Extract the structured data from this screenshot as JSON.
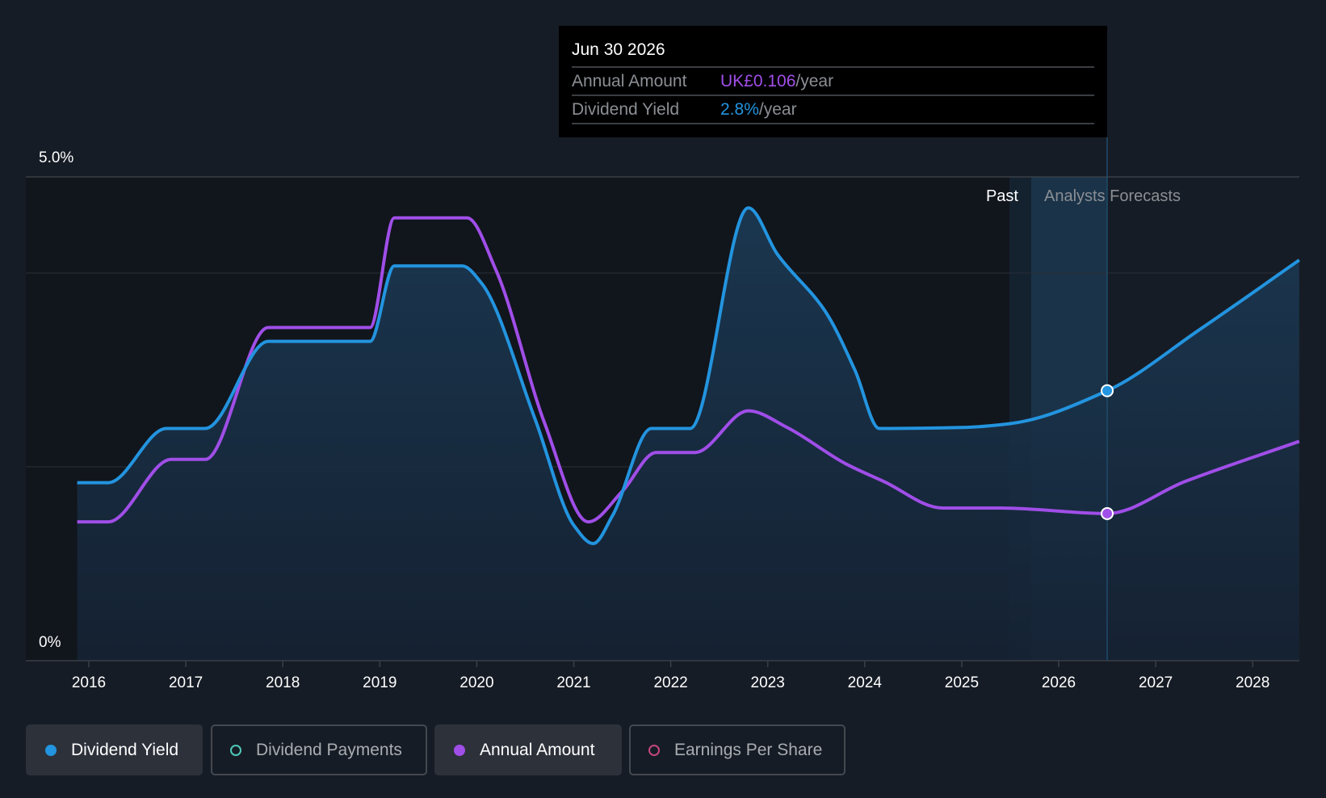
{
  "colors": {
    "yield": "#2394df",
    "amount": "#a04ee8",
    "payments": "#4fc7b8",
    "eps": "#c2477f",
    "background": "#161c25"
  },
  "tooltip": {
    "date": "Jun 30 2026",
    "rows": [
      {
        "label": "Annual Amount",
        "value": "UK£0.106",
        "suffix": "/year"
      },
      {
        "label": "Dividend Yield",
        "value": "2.8%",
        "suffix": "/year"
      }
    ]
  },
  "regions": {
    "past": "Past",
    "forecast": "Analysts Forecasts"
  },
  "legend": [
    {
      "label": "Dividend Yield",
      "active": true
    },
    {
      "label": "Dividend Payments",
      "active": false
    },
    {
      "label": "Annual Amount",
      "active": true
    },
    {
      "label": "Earnings Per Share",
      "active": false
    }
  ],
  "chart_data": {
    "type": "line",
    "y_axis": {
      "labels": [
        "5.0%",
        "0%"
      ],
      "ylim": [
        0,
        5
      ],
      "unit": "%"
    },
    "x_ticks": [
      "2016",
      "2017",
      "2018",
      "2019",
      "2020",
      "2021",
      "2022",
      "2023",
      "2024",
      "2025",
      "2026",
      "2027",
      "2028"
    ],
    "forecast_start": 2025.5,
    "highlight_x": 2026.5,
    "series": [
      {
        "name": "Dividend Yield",
        "unit": "%",
        "points": [
          [
            2015.88,
            1.84
          ],
          [
            2016.2,
            1.84
          ],
          [
            2016.8,
            2.4
          ],
          [
            2017.2,
            2.4
          ],
          [
            2017.85,
            3.3
          ],
          [
            2018.9,
            3.3
          ],
          [
            2019.15,
            4.08
          ],
          [
            2019.85,
            4.08
          ],
          [
            2020.05,
            3.9
          ],
          [
            2020.6,
            2.5
          ],
          [
            2021.0,
            1.4
          ],
          [
            2021.2,
            1.21
          ],
          [
            2021.4,
            1.5
          ],
          [
            2021.8,
            2.4
          ],
          [
            2022.2,
            2.4
          ],
          [
            2022.8,
            4.68
          ],
          [
            2023.1,
            4.2
          ],
          [
            2023.6,
            3.6
          ],
          [
            2023.9,
            3.0
          ],
          [
            2024.15,
            2.4
          ],
          [
            2025.0,
            2.41
          ],
          [
            2025.5,
            2.45
          ],
          [
            2026.5,
            2.79
          ],
          [
            2027.45,
            3.42
          ],
          [
            2028.48,
            4.14
          ]
        ]
      },
      {
        "name": "Annual Amount",
        "unit": "GBP",
        "points": [
          [
            2015.88,
            0.1
          ],
          [
            2016.2,
            0.1
          ],
          [
            2016.85,
            0.145
          ],
          [
            2017.2,
            0.145
          ],
          [
            2017.85,
            0.24
          ],
          [
            2018.9,
            0.24
          ],
          [
            2019.15,
            0.319
          ],
          [
            2019.9,
            0.319
          ],
          [
            2020.2,
            0.281
          ],
          [
            2020.7,
            0.171
          ],
          [
            2021.15,
            0.1
          ],
          [
            2021.5,
            0.122
          ],
          [
            2021.85,
            0.15
          ],
          [
            2022.25,
            0.15
          ],
          [
            2022.8,
            0.18
          ],
          [
            2023.2,
            0.168
          ],
          [
            2023.8,
            0.142
          ],
          [
            2024.2,
            0.129
          ],
          [
            2024.8,
            0.11
          ],
          [
            2025.4,
            0.11
          ],
          [
            2026.5,
            0.106
          ],
          [
            2027.3,
            0.129
          ],
          [
            2028.48,
            0.158
          ]
        ]
      }
    ]
  }
}
